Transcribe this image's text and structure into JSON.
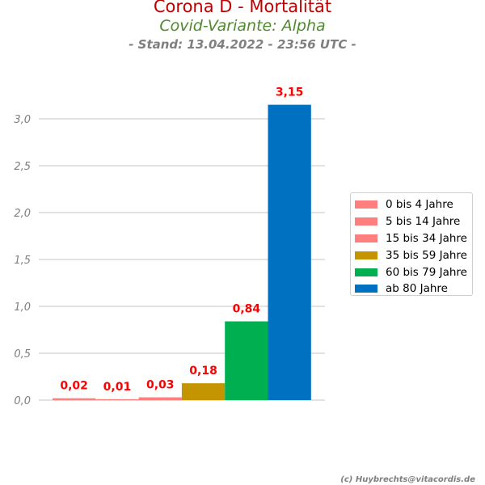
{
  "header": {
    "title": "Corona D - Mortalität",
    "subtitle": "Covid-Variante: Alpha",
    "stand": "- Stand: 13.04.2022 - 23:56 UTC -"
  },
  "footer": {
    "credit": "(c) Huybrechts@vitacordis.de"
  },
  "chart_data": {
    "type": "bar",
    "categories": [
      "0 bis 4 Jahre",
      "5 bis 14 Jahre",
      "15 bis 34 Jahre",
      "35 bis 59 Jahre",
      "60 bis 79 Jahre",
      "ab 80 Jahre"
    ],
    "values": [
      0.02,
      0.01,
      0.03,
      0.18,
      0.84,
      3.15
    ],
    "data_labels": [
      "0,02",
      "0,01",
      "0,03",
      "0,18",
      "0,84",
      "3,15"
    ],
    "colors": [
      "#ff7f7f",
      "#ff7f7f",
      "#ff7f7f",
      "#c49500",
      "#00b050",
      "#0070c0"
    ],
    "ylim": [
      0,
      3.0
    ],
    "yticks": [
      0,
      0.5,
      1.0,
      1.5,
      2.0,
      2.5,
      3.0
    ],
    "ytick_labels": [
      "0,0",
      "0,5",
      "1,0",
      "1,5",
      "2,0",
      "2,5",
      "3,0"
    ],
    "data_label_color": "#ff0000",
    "grid": true,
    "legend_position": "right",
    "title": "Corona D - Mortalität",
    "xlabel": "",
    "ylabel": ""
  }
}
